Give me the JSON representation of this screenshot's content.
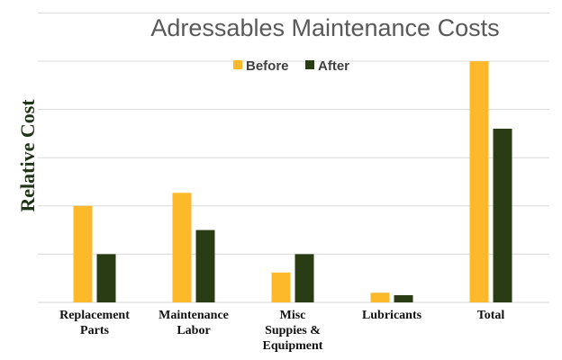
{
  "colors": {
    "before": "#FDB92A",
    "after": "#2A3C14",
    "grid": "#D9D9D9"
  },
  "chart_data": {
    "type": "bar",
    "title": "Adressables Maintenance Costs",
    "xlabel": "",
    "ylabel": "Relative Cost",
    "ylim": [
      0,
      5
    ],
    "grid": true,
    "legend_position": "top-center",
    "categories": [
      [
        "Replacement",
        "Parts"
      ],
      [
        "Maintenance",
        "Labor"
      ],
      [
        "Misc",
        "Suppies &",
        "Equipment"
      ],
      [
        "Lubricants"
      ],
      [
        "Total"
      ]
    ],
    "series": [
      {
        "name": "Before",
        "values": [
          2.0,
          2.27,
          0.62,
          0.2,
          5.0
        ]
      },
      {
        "name": "After",
        "values": [
          1.0,
          1.5,
          1.0,
          0.15,
          3.6
        ]
      }
    ]
  }
}
